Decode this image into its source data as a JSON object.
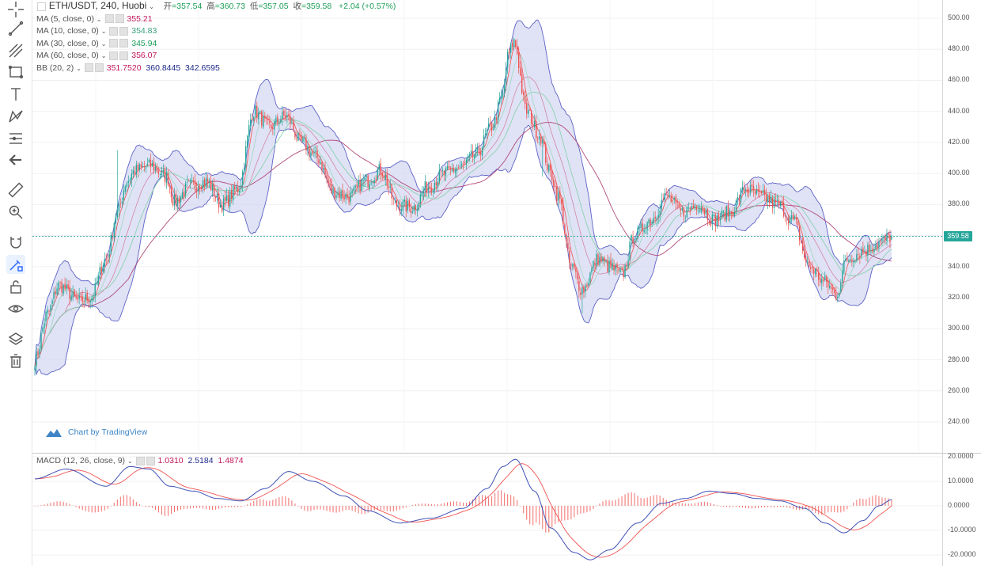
{
  "header": {
    "title": "ETH/USDT, 240, Huobi",
    "open_label": "开",
    "open": "357.54",
    "high_label": "高",
    "high": "360.73",
    "low_label": "低",
    "low": "357.05",
    "close_label": "收",
    "close": "359.58",
    "change": "+2.04 (+0.57%)"
  },
  "indicators": [
    {
      "label": "MA (5, close, 0)",
      "value": "355.21",
      "color": "#c2185b"
    },
    {
      "label": "MA (10, close, 0)",
      "value": "354.83",
      "color": "#3aa17e"
    },
    {
      "label": "MA (30, close, 0)",
      "value": "345.94",
      "color": "#1e9e5a"
    },
    {
      "label": "MA (60, close, 0)",
      "value": "356.07",
      "color": "#c2185b"
    }
  ],
  "bb": {
    "label": "BB (20, 2)",
    "basis": "351.7520",
    "upper": "360.8445",
    "lower": "342.6595"
  },
  "macd": {
    "label": "MACD (12, 26, close, 9)",
    "hist": "1.0310",
    "macd": "2.5184",
    "signal": "1.4874"
  },
  "watermark": "Chart by TradingView",
  "last_price": "359.58",
  "price_axis": [
    "500.00",
    "480.00",
    "460.00",
    "440.00",
    "420.00",
    "400.00",
    "380.00",
    "360.00",
    "340.00",
    "320.00",
    "300.00",
    "280.00",
    "260.00",
    "240.00"
  ],
  "macd_axis": [
    "20.0000",
    "10.0000",
    "0.0000",
    "-10.0000",
    "-20.0000"
  ],
  "toolbar": [
    "crosshair-icon",
    "trend-line-icon",
    "pitchfork-icon",
    "rectangle-icon",
    "text-icon",
    "pattern-icon",
    "measure-icon",
    "back-arrow-icon",
    "ruler-icon",
    "zoom-icon",
    "magnet-icon",
    "lock-drawing-icon",
    "unlock-icon",
    "eye-icon",
    "layers-icon",
    "trash-icon"
  ],
  "colors": {
    "up": "#26a69a",
    "down": "#ef5350",
    "bb_fill": "#d6d8f2",
    "bb_line": "#5d63c7",
    "ma5": "#ef5350",
    "ma60": "#b04a7a",
    "macd_line": "#3f51b5",
    "signal_line": "#ef5350"
  },
  "chart_data": {
    "type": "candlestick",
    "symbol": "ETH/USDT",
    "interval": "240",
    "exchange": "Huobi",
    "ylim": [
      230,
      505
    ],
    "close_anchor": [
      [
        0,
        280
      ],
      [
        8,
        310
      ],
      [
        15,
        328
      ],
      [
        28,
        318
      ],
      [
        35,
        320
      ],
      [
        45,
        345
      ],
      [
        52,
        375
      ],
      [
        58,
        395
      ],
      [
        63,
        402
      ],
      [
        73,
        405
      ],
      [
        83,
        398
      ],
      [
        88,
        382
      ],
      [
        98,
        392
      ],
      [
        108,
        395
      ],
      [
        118,
        380
      ],
      [
        128,
        390
      ],
      [
        138,
        440
      ],
      [
        148,
        430
      ],
      [
        158,
        437
      ],
      [
        168,
        420
      ],
      [
        178,
        410
      ],
      [
        188,
        388
      ],
      [
        198,
        385
      ],
      [
        208,
        395
      ],
      [
        218,
        402
      ],
      [
        228,
        380
      ],
      [
        238,
        378
      ],
      [
        248,
        392
      ],
      [
        258,
        400
      ],
      [
        268,
        404
      ],
      [
        278,
        412
      ],
      [
        288,
        430
      ],
      [
        295,
        450
      ],
      [
        298,
        475
      ],
      [
        302,
        485
      ],
      [
        310,
        440
      ],
      [
        318,
        425
      ],
      [
        325,
        400
      ],
      [
        330,
        385
      ],
      [
        338,
        340
      ],
      [
        345,
        325
      ],
      [
        355,
        345
      ],
      [
        362,
        340
      ],
      [
        370,
        335
      ],
      [
        378,
        360
      ],
      [
        388,
        370
      ],
      [
        398,
        385
      ],
      [
        408,
        375
      ],
      [
        418,
        380
      ],
      [
        428,
        370
      ],
      [
        438,
        375
      ],
      [
        448,
        390
      ],
      [
        458,
        385
      ],
      [
        468,
        380
      ],
      [
        478,
        370
      ],
      [
        488,
        340
      ],
      [
        498,
        330
      ],
      [
        505,
        322
      ],
      [
        512,
        345
      ],
      [
        522,
        350
      ],
      [
        532,
        355
      ],
      [
        540,
        359.58
      ]
    ],
    "macd_ylim": [
      -22,
      21
    ],
    "macd_anchor": [
      [
        0,
        11
      ],
      [
        20,
        15
      ],
      [
        45,
        8
      ],
      [
        60,
        16
      ],
      [
        72,
        15
      ],
      [
        85,
        8
      ],
      [
        100,
        6
      ],
      [
        115,
        3
      ],
      [
        130,
        2
      ],
      [
        145,
        7
      ],
      [
        160,
        14
      ],
      [
        175,
        10
      ],
      [
        195,
        4
      ],
      [
        210,
        -2
      ],
      [
        230,
        -7
      ],
      [
        250,
        -5
      ],
      [
        270,
        -1
      ],
      [
        285,
        7
      ],
      [
        295,
        16
      ],
      [
        303,
        19
      ],
      [
        315,
        6
      ],
      [
        325,
        -9
      ],
      [
        340,
        -19
      ],
      [
        350,
        -22
      ],
      [
        362,
        -18
      ],
      [
        380,
        -7
      ],
      [
        395,
        1
      ],
      [
        410,
        3
      ],
      [
        425,
        6
      ],
      [
        440,
        5
      ],
      [
        455,
        3
      ],
      [
        470,
        2
      ],
      [
        485,
        -1
      ],
      [
        498,
        -7
      ],
      [
        510,
        -11
      ],
      [
        522,
        -6
      ],
      [
        532,
        0
      ],
      [
        540,
        2.5
      ]
    ]
  }
}
